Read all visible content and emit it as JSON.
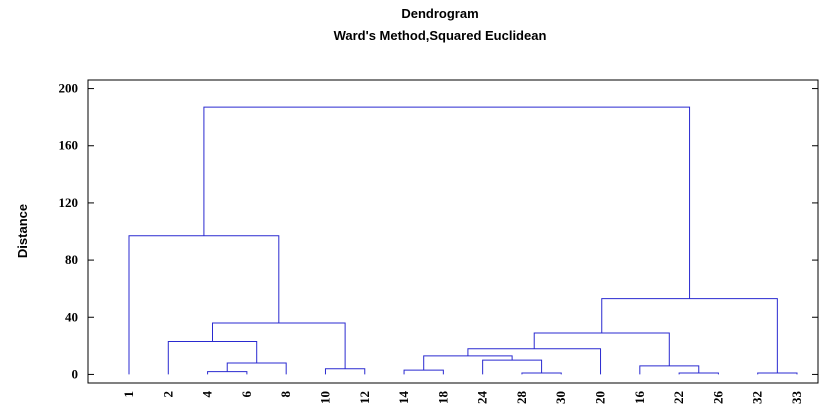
{
  "chart_data": {
    "type": "dendrogram",
    "title": "Dendrogram",
    "subtitle": "Ward's Method,Squared Euclidean",
    "y_label": "Distance",
    "color": "#2a2ad0",
    "ylim": [
      -6,
      206
    ],
    "yticks": [
      0,
      40,
      80,
      120,
      160,
      200
    ],
    "leaves": [
      "1",
      "2",
      "4",
      "6",
      "8",
      "10",
      "12",
      "14",
      "18",
      "24",
      "28",
      "30",
      "20",
      "16",
      "22",
      "26",
      "32",
      "33"
    ],
    "merges": [
      {
        "nodes": [
          2,
          3
        ],
        "height": 2
      },
      {
        "nodes": [
          18,
          4
        ],
        "height": 8
      },
      {
        "nodes": [
          1,
          19
        ],
        "height": 23
      },
      {
        "nodes": [
          5,
          6
        ],
        "height": 4
      },
      {
        "nodes": [
          20,
          21
        ],
        "height": 36
      },
      {
        "nodes": [
          0,
          22
        ],
        "height": 97
      },
      {
        "nodes": [
          7,
          8
        ],
        "height": 3
      },
      {
        "nodes": [
          10,
          11
        ],
        "height": 1
      },
      {
        "nodes": [
          9,
          25
        ],
        "height": 10
      },
      {
        "nodes": [
          24,
          26
        ],
        "height": 13
      },
      {
        "nodes": [
          27,
          12
        ],
        "height": 18
      },
      {
        "nodes": [
          14,
          15
        ],
        "height": 1
      },
      {
        "nodes": [
          13,
          29
        ],
        "height": 6
      },
      {
        "nodes": [
          28,
          30
        ],
        "height": 29
      },
      {
        "nodes": [
          16,
          17
        ],
        "height": 1
      },
      {
        "nodes": [
          31,
          32
        ],
        "height": 53
      },
      {
        "nodes": [
          23,
          33
        ],
        "height": 187
      }
    ]
  }
}
